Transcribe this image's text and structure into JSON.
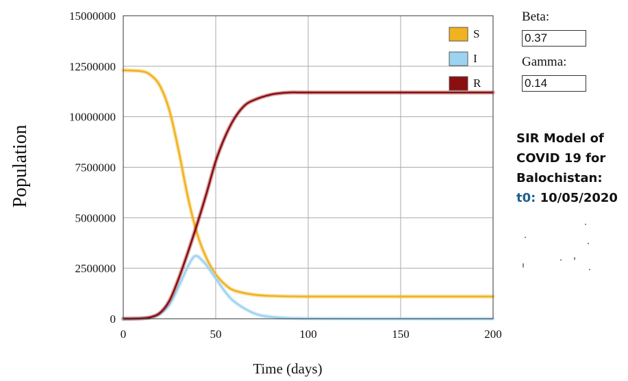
{
  "params": {
    "beta_label": "Beta:",
    "beta_value": "0.37",
    "gamma_label": "Gamma:",
    "gamma_value": "0.14"
  },
  "title": {
    "line1": "SIR Model of",
    "line2": "COVID 19 for",
    "line3": "Balochistan:",
    "t0_label": "t0:",
    "t0_date": " 10/05/2020"
  },
  "colors": {
    "S": "#f0b21f",
    "I": "#9cd3f1",
    "R": "#8b0e10",
    "grid": "#a9a9a9"
  },
  "chart_data": {
    "type": "line",
    "xlabel": "Time (days)",
    "ylabel": "Population",
    "xlim": [
      0,
      200
    ],
    "ylim": [
      0,
      15000000
    ],
    "xticks": [
      "0",
      "50",
      "100",
      "150",
      "200"
    ],
    "yticks": [
      "0",
      "2500000",
      "5000000",
      "7500000",
      "10000000",
      "12500000",
      "15000000"
    ],
    "grid": true,
    "legend_position": "top-right",
    "series": [
      {
        "name": "S",
        "x": [
          0,
          10,
          15,
          20,
          25,
          30,
          35,
          40,
          45,
          50,
          55,
          60,
          70,
          80,
          100,
          150,
          200
        ],
        "y": [
          12300000,
          12250000,
          12050000,
          11500000,
          10300000,
          8300000,
          6000000,
          4200000,
          3000000,
          2200000,
          1700000,
          1400000,
          1200000,
          1130000,
          1100000,
          1100000,
          1100000
        ]
      },
      {
        "name": "I",
        "x": [
          0,
          10,
          15,
          20,
          25,
          30,
          35,
          38,
          40,
          42,
          45,
          50,
          55,
          60,
          70,
          80,
          100,
          150,
          200
        ],
        "y": [
          0,
          20000,
          80000,
          250000,
          700000,
          1600000,
          2600000,
          3050000,
          3100000,
          2950000,
          2650000,
          2000000,
          1350000,
          850000,
          300000,
          90000,
          10000,
          0,
          0
        ]
      },
      {
        "name": "R",
        "x": [
          0,
          10,
          15,
          20,
          25,
          30,
          35,
          40,
          45,
          50,
          55,
          60,
          65,
          70,
          80,
          90,
          100,
          150,
          200
        ],
        "y": [
          0,
          20000,
          80000,
          300000,
          900000,
          2000000,
          3300000,
          4700000,
          6200000,
          7800000,
          9000000,
          9900000,
          10500000,
          10800000,
          11100000,
          11200000,
          11200000,
          11200000,
          11200000
        ]
      }
    ]
  }
}
